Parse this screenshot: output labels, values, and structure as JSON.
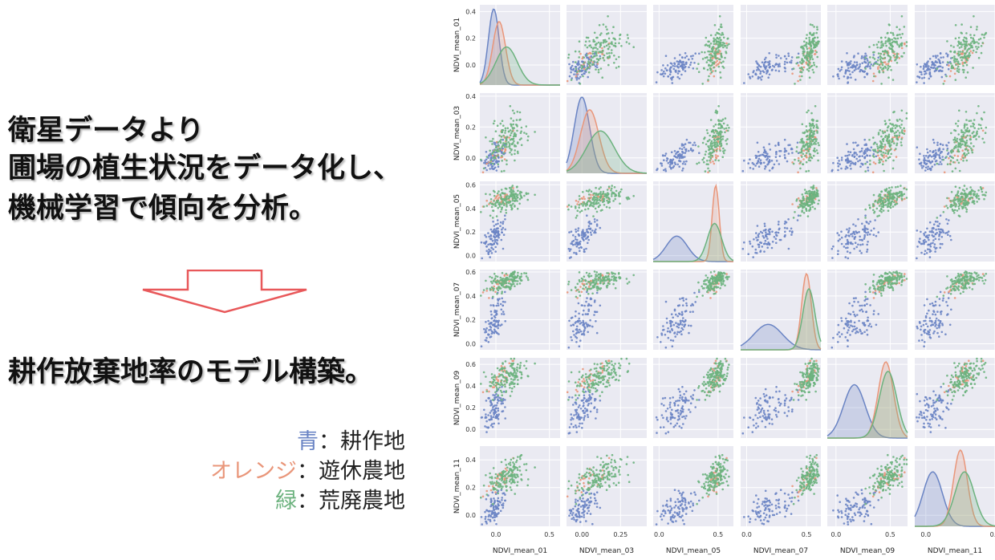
{
  "slide": {
    "lines": [
      "衛星データより",
      "圃場の植生状況をデータ化し、",
      "機械学習で傾向を分析。",
      "耕作放棄地率のモデル構築。"
    ],
    "legend": [
      {
        "name": "青",
        "sep": "：",
        "desc": "耕作地",
        "color": "#6A84C4"
      },
      {
        "name": "オレンジ",
        "sep": "：",
        "desc": "遊休農地",
        "color": "#E9967A"
      },
      {
        "name": "緑",
        "sep": "：",
        "desc": "荒廃農地",
        "color": "#6CB27E"
      }
    ],
    "arrow_icon": "down-arrow-icon",
    "arrow_color": "#E8585A"
  },
  "chart_data": {
    "type": "scatter",
    "subtype": "pairplot",
    "variables": [
      "NDVI_mean_01",
      "NDVI_mean_03",
      "NDVI_mean_05",
      "NDVI_mean_07",
      "NDVI_mean_09",
      "NDVI_mean_11"
    ],
    "axis_ranges": [
      [
        -0.15,
        0.45
      ],
      [
        -0.1,
        0.42
      ],
      [
        -0.05,
        0.63
      ],
      [
        -0.05,
        0.62
      ],
      [
        -0.08,
        0.66
      ],
      [
        -0.08,
        0.5
      ]
    ],
    "y_ticks": [
      [
        0.0,
        0.2,
        0.4
      ],
      [
        0.0,
        0.2,
        0.4
      ],
      [
        0.0,
        0.2,
        0.4,
        0.6
      ],
      [
        0.0,
        0.2,
        0.4,
        0.6
      ],
      [
        0.0,
        0.2,
        0.4,
        0.6
      ],
      [
        0.0,
        0.2,
        0.4
      ]
    ],
    "x_ticks": [
      {
        "values": [
          0.0,
          0.5
        ],
        "labels": [
          "0.0",
          "0.5"
        ],
        "range": [
          -0.15,
          0.6
        ]
      },
      {
        "values": [
          0.0,
          0.25
        ],
        "labels": [
          "0.00",
          "0.25"
        ],
        "range": [
          -0.1,
          0.42
        ]
      },
      {
        "values": [
          0.0,
          0.5
        ],
        "labels": [
          "0.0",
          "0.5"
        ],
        "range": [
          -0.05,
          0.63
        ]
      },
      {
        "values": [
          0.0,
          0.5
        ],
        "labels": [
          "0.0",
          "0.5"
        ],
        "range": [
          -0.05,
          0.62
        ]
      },
      {
        "values": [
          0.0,
          0.5
        ],
        "labels": [
          "0.0",
          "0.5"
        ],
        "range": [
          -0.08,
          0.66
        ]
      },
      {
        "values": [
          0.0,
          0.5
        ],
        "labels": [
          "0.0",
          "0.5"
        ],
        "range": [
          -0.08,
          0.5
        ]
      }
    ],
    "groups": [
      {
        "legend": "青",
        "color": "#6A84C4",
        "means": [
          -0.02,
          0.0,
          0.15,
          0.18,
          0.17,
          0.05
        ],
        "sds": [
          0.05,
          0.05,
          0.09,
          0.12,
          0.1,
          0.07
        ]
      },
      {
        "legend": "オレンジ",
        "color": "#E9967A",
        "means": [
          0.03,
          0.05,
          0.48,
          0.5,
          0.46,
          0.25
        ],
        "sds": [
          0.06,
          0.06,
          0.03,
          0.04,
          0.07,
          0.05
        ]
      },
      {
        "legend": "緑",
        "color": "#6CB27E",
        "means": [
          0.1,
          0.12,
          0.47,
          0.52,
          0.48,
          0.28
        ],
        "sds": [
          0.1,
          0.09,
          0.06,
          0.05,
          0.08,
          0.07
        ]
      }
    ],
    "correlation": 0.75,
    "points_per_group": [
      100,
      30,
      150
    ],
    "grid": true,
    "background_color": "#EAEAF2"
  }
}
